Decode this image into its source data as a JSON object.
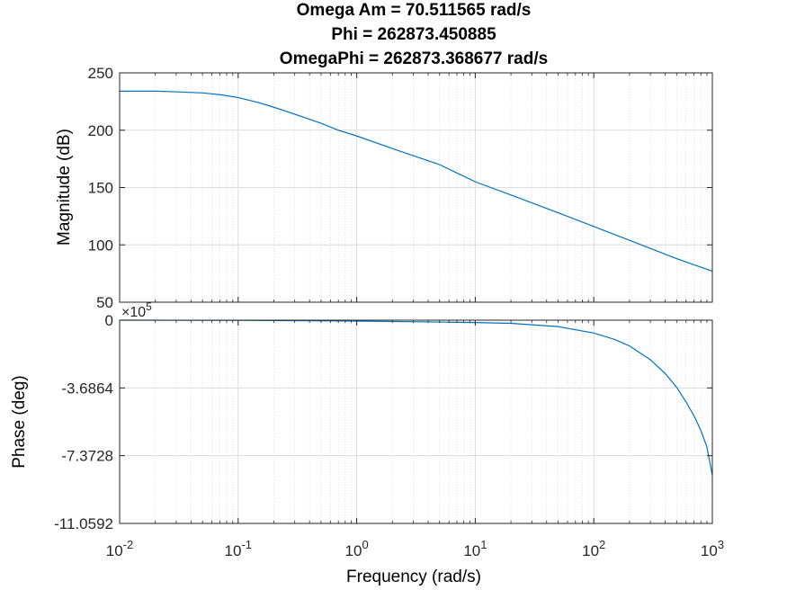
{
  "chart_data": {
    "type": "line",
    "title_lines": [
      "Omega Am = 70.511565 rad/s",
      "Phi = 262873.450885",
      "OmegaPhi = 262873.368677 rad/s"
    ],
    "xlabel": "Frequency  (rad/s)",
    "xscale": "log",
    "xlim": [
      0.01,
      1000
    ],
    "x_ticks": [
      {
        "base": "10",
        "exp": "-2"
      },
      {
        "base": "10",
        "exp": "-1"
      },
      {
        "base": "10",
        "exp": "0"
      },
      {
        "base": "10",
        "exp": "1"
      },
      {
        "base": "10",
        "exp": "2"
      },
      {
        "base": "10",
        "exp": "3"
      }
    ],
    "grid": "major and minor",
    "series_color": "#0072BD",
    "magnitude": {
      "ylabel": "Magnitude (dB)",
      "ylim": [
        50,
        250
      ],
      "y_ticks": [
        "250",
        "200",
        "150",
        "100",
        "50"
      ],
      "x": [
        0.01,
        0.02,
        0.03,
        0.05,
        0.07,
        0.1,
        0.15,
        0.2,
        0.3,
        0.5,
        0.7,
        1,
        2,
        5,
        10,
        20,
        50,
        100,
        200,
        500,
        1000
      ],
      "y": [
        234,
        234,
        233.5,
        232.5,
        231,
        228.5,
        224,
        220,
        214,
        206,
        200,
        195,
        184,
        170,
        155,
        143.5,
        128,
        116,
        104,
        88,
        77
      ]
    },
    "phase": {
      "ylabel": "Phase (deg)",
      "exponent_label": "×10",
      "exponent": "5",
      "ylim": [
        -11.0592,
        0
      ],
      "y_ticks": [
        "0",
        "-3.6864",
        "-7.3728",
        "-11.0592"
      ],
      "x": [
        0.01,
        0.1,
        1,
        5,
        10,
        20,
        50,
        100,
        150,
        200,
        300,
        400,
        500,
        600,
        700,
        800,
        900,
        1000
      ],
      "y": [
        0,
        -0.01,
        -0.05,
        -0.1,
        -0.13,
        -0.17,
        -0.35,
        -0.7,
        -1.05,
        -1.4,
        -2.15,
        -2.9,
        -3.65,
        -4.45,
        -5.2,
        -6.0,
        -6.9,
        -8.45
      ]
    }
  }
}
